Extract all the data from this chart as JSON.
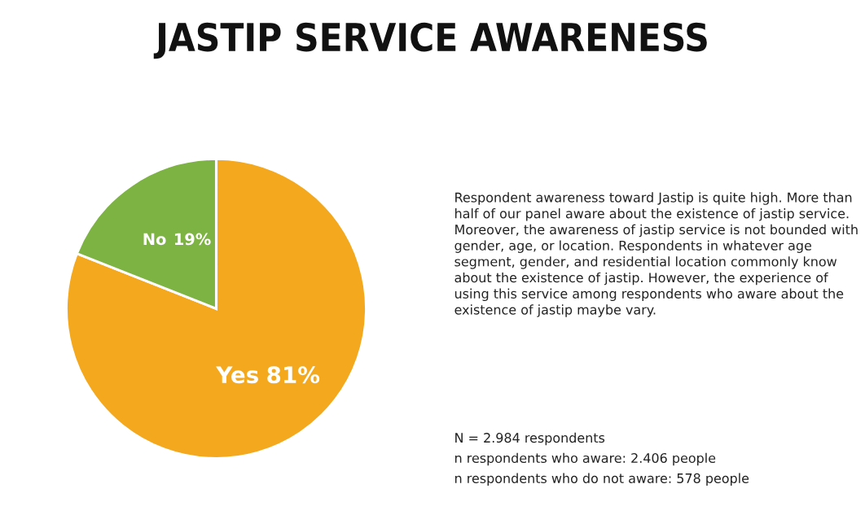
{
  "chart_data": {
    "type": "pie",
    "title": "JASTIP SERVICE AWARENESS",
    "categories": [
      "Yes",
      "No"
    ],
    "values": [
      81,
      19
    ],
    "colors": [
      "#f4a81d",
      "#7cb342"
    ],
    "value_labels": [
      "81%",
      "19%"
    ],
    "annotations": [
      "Respondent awareness toward Jastip is quite high. More than half of our panel aware about the existence of jastip service. Moreover, the awareness of jastip service is not bounded with gender, age, or location. Respondents in whatever age segment, gender, and residential location commonly know about the existence of jastip. However, the experience of using this service among respondents who aware about the existence of jastip maybe vary.",
      "N = 2.984 respondents",
      "n respondents who aware: 2.406 people",
      "n respondents who do not aware: 578 people"
    ]
  }
}
